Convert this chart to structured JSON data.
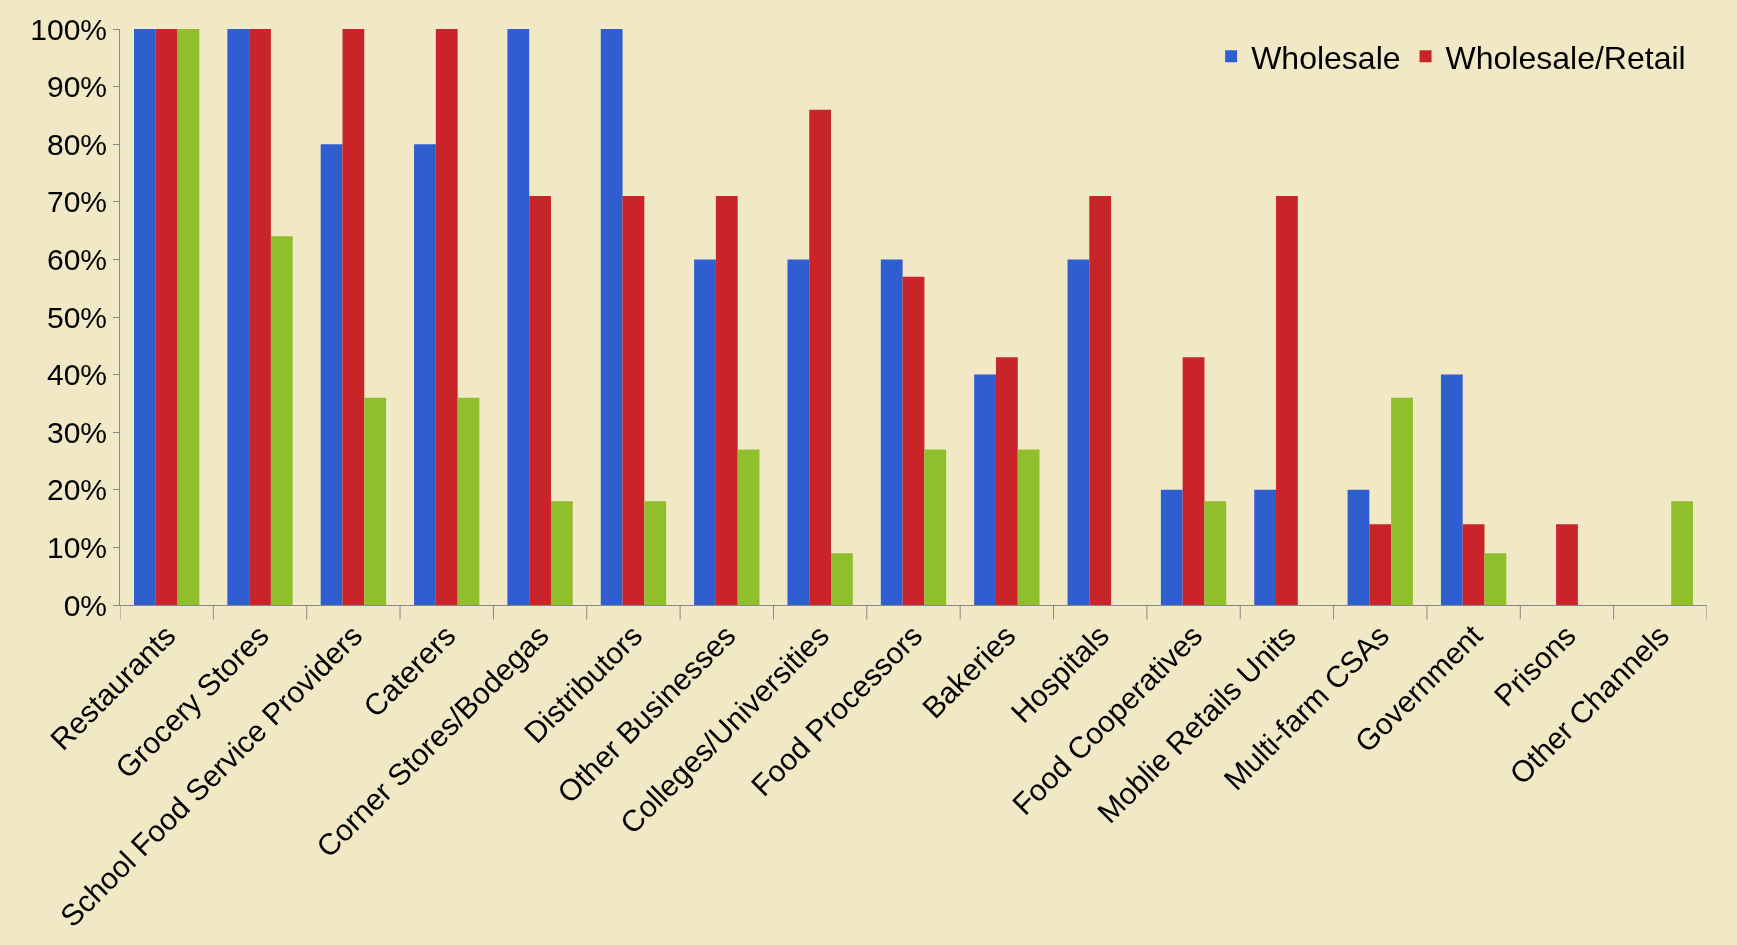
{
  "chart_data": {
    "type": "bar",
    "categories": [
      "Restaurants",
      "Grocery Stores",
      "School Food Service Providers",
      "Caterers",
      "Corner Stores/Bodegas",
      "Distributors",
      "Other Businesses",
      "Colleges/Universities",
      "Food Processors",
      "Bakeries",
      "Hospitals",
      "Food Cooperatives",
      "Moblie Retails Units",
      "Multi-farm CSAs",
      "Government",
      "Prisons",
      "Other Channels"
    ],
    "series": [
      {
        "name": "Wholesale",
        "color": "#2f5fcf",
        "values": [
          100,
          100,
          80,
          80,
          100,
          100,
          60,
          60,
          60,
          40,
          60,
          20,
          20,
          20,
          40,
          0,
          0
        ]
      },
      {
        "name": "Wholesale/Retail",
        "color": "#c8242a",
        "values": [
          100,
          100,
          100,
          100,
          71,
          71,
          71,
          86,
          57,
          43,
          71,
          43,
          71,
          14,
          14,
          14,
          0
        ]
      },
      {
        "color": "#8fbf2a",
        "values": [
          100,
          64,
          36,
          36,
          18,
          18,
          27,
          9,
          27,
          27,
          0,
          18,
          0,
          36,
          9,
          0,
          18
        ]
      }
    ],
    "ylim": [
      0,
      100
    ],
    "yticks": [
      {
        "value": 0,
        "label": "0%"
      },
      {
        "value": 10,
        "label": "10%"
      },
      {
        "value": 20,
        "label": "20%"
      },
      {
        "value": 30,
        "label": "30%"
      },
      {
        "value": 40,
        "label": "40%"
      },
      {
        "value": 50,
        "label": "50%"
      },
      {
        "value": 60,
        "label": "60%"
      },
      {
        "value": 70,
        "label": "70%"
      },
      {
        "value": 80,
        "label": "80%"
      },
      {
        "value": 90,
        "label": "90%"
      },
      {
        "value": 100,
        "label": "100%"
      }
    ],
    "grid": false,
    "legend": "top right"
  }
}
